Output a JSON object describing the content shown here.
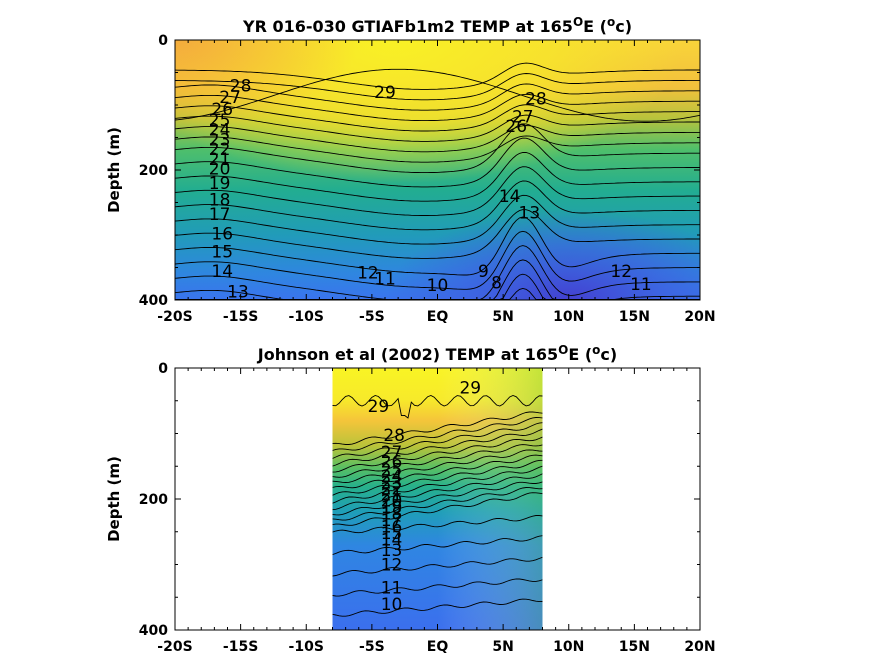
{
  "chart_data": [
    {
      "type": "heatmap",
      "title": "YR 016-030 GTIAFb1m2 TEMP at 165°E (°c)",
      "title_parts": {
        "pre": "YR 016-030 GTIAFb1m2 TEMP at 165",
        "sup1": "O",
        "mid": "E (",
        "sup2": "o",
        "post": "c)"
      },
      "xlabel": "",
      "ylabel": "Depth (m)",
      "x_ticks": [
        "-20S",
        "-15S",
        "-10S",
        "-5S",
        "EQ",
        "5N",
        "10N",
        "15N",
        "20N"
      ],
      "x_tick_values": [
        -20,
        -15,
        -10,
        -5,
        0,
        5,
        10,
        15,
        20
      ],
      "y_ticks": [
        "0",
        "200",
        "400"
      ],
      "y_tick_values": [
        0,
        200,
        400
      ],
      "xlim": [
        -20,
        20
      ],
      "ylim": [
        0,
        400
      ],
      "y_reversed": true,
      "data_extent": [
        -20,
        20
      ],
      "contour_levels": [
        29,
        28,
        27,
        26,
        25,
        24,
        23,
        22,
        21,
        20,
        19,
        18,
        17,
        16,
        15,
        14,
        13,
        12,
        11,
        10,
        9,
        8
      ],
      "contour_labels": [
        {
          "text": "29",
          "x": -4.0,
          "y": 80
        },
        {
          "text": "28",
          "x": -15.0,
          "y": 70
        },
        {
          "text": "27",
          "x": -15.8,
          "y": 88
        },
        {
          "text": "26",
          "x": -16.4,
          "y": 106
        },
        {
          "text": "25",
          "x": -16.6,
          "y": 123
        },
        {
          "text": "24",
          "x": -16.6,
          "y": 138
        },
        {
          "text": "23",
          "x": -16.6,
          "y": 153
        },
        {
          "text": "22",
          "x": -16.6,
          "y": 168
        },
        {
          "text": "21",
          "x": -16.6,
          "y": 183
        },
        {
          "text": "20",
          "x": -16.6,
          "y": 198
        },
        {
          "text": "19",
          "x": -16.6,
          "y": 220
        },
        {
          "text": "18",
          "x": -16.6,
          "y": 245
        },
        {
          "text": "17",
          "x": -16.6,
          "y": 268
        },
        {
          "text": "16",
          "x": -16.4,
          "y": 298
        },
        {
          "text": "15",
          "x": -16.4,
          "y": 325
        },
        {
          "text": "14",
          "x": -16.4,
          "y": 355
        },
        {
          "text": "13",
          "x": -15.2,
          "y": 387
        },
        {
          "text": "12",
          "x": -5.3,
          "y": 358
        },
        {
          "text": "11",
          "x": -4.0,
          "y": 367
        },
        {
          "text": "10",
          "x": 0.0,
          "y": 377
        },
        {
          "text": "9",
          "x": 3.5,
          "y": 355
        },
        {
          "text": "8",
          "x": 4.5,
          "y": 373
        },
        {
          "text": "28",
          "x": 7.5,
          "y": 90
        },
        {
          "text": "27",
          "x": 6.5,
          "y": 118
        },
        {
          "text": "26",
          "x": 6.0,
          "y": 132
        },
        {
          "text": "13",
          "x": 7.0,
          "y": 265
        },
        {
          "text": "14",
          "x": 5.5,
          "y": 240
        },
        {
          "text": "12",
          "x": 14.0,
          "y": 355
        },
        {
          "text": "11",
          "x": 15.5,
          "y": 375
        }
      ]
    },
    {
      "type": "heatmap",
      "title": "Johnson et al (2002) TEMP at 165°E (°c)",
      "title_parts": {
        "pre": "Johnson et al (2002) TEMP at 165",
        "sup1": "O",
        "mid": "E (",
        "sup2": "o",
        "post": "c)"
      },
      "xlabel": "",
      "ylabel": "Depth (m)",
      "x_ticks": [
        "-20S",
        "-15S",
        "-10S",
        "-5S",
        "EQ",
        "5N",
        "10N",
        "15N",
        "20N"
      ],
      "x_tick_values": [
        -20,
        -15,
        -10,
        -5,
        0,
        5,
        10,
        15,
        20
      ],
      "y_ticks": [
        "0",
        "200",
        "400"
      ],
      "y_tick_values": [
        0,
        200,
        400
      ],
      "xlim": [
        -20,
        20
      ],
      "ylim": [
        0,
        400
      ],
      "y_reversed": true,
      "data_extent": [
        -8,
        8
      ],
      "contour_levels": [
        29,
        28,
        27,
        26,
        25,
        24,
        23,
        22,
        21,
        20,
        19,
        18,
        17,
        16,
        15,
        14,
        13,
        12,
        11,
        10
      ],
      "contour_labels": [
        {
          "text": "29",
          "x": -4.5,
          "y": 58
        },
        {
          "text": "29",
          "x": 2.5,
          "y": 30
        },
        {
          "text": "28",
          "x": -3.3,
          "y": 102
        },
        {
          "text": "27",
          "x": -3.5,
          "y": 128
        },
        {
          "text": "26",
          "x": -3.5,
          "y": 143
        },
        {
          "text": "25",
          "x": -3.5,
          "y": 155
        },
        {
          "text": "24",
          "x": -3.5,
          "y": 165
        },
        {
          "text": "23",
          "x": -3.5,
          "y": 175
        },
        {
          "text": "22",
          "x": -3.5,
          "y": 184
        },
        {
          "text": "21",
          "x": -3.5,
          "y": 193
        },
        {
          "text": "20",
          "x": -3.5,
          "y": 202
        },
        {
          "text": "19",
          "x": -3.5,
          "y": 212
        },
        {
          "text": "18",
          "x": -3.5,
          "y": 222
        },
        {
          "text": "17",
          "x": -3.5,
          "y": 232
        },
        {
          "text": "16",
          "x": -3.5,
          "y": 242
        },
        {
          "text": "15",
          "x": -3.5,
          "y": 252
        },
        {
          "text": "14",
          "x": -3.5,
          "y": 262
        },
        {
          "text": "13",
          "x": -3.5,
          "y": 278
        },
        {
          "text": "12",
          "x": -3.5,
          "y": 300
        },
        {
          "text": "11",
          "x": -3.5,
          "y": 335
        },
        {
          "text": "10",
          "x": -3.5,
          "y": 360
        }
      ]
    }
  ]
}
